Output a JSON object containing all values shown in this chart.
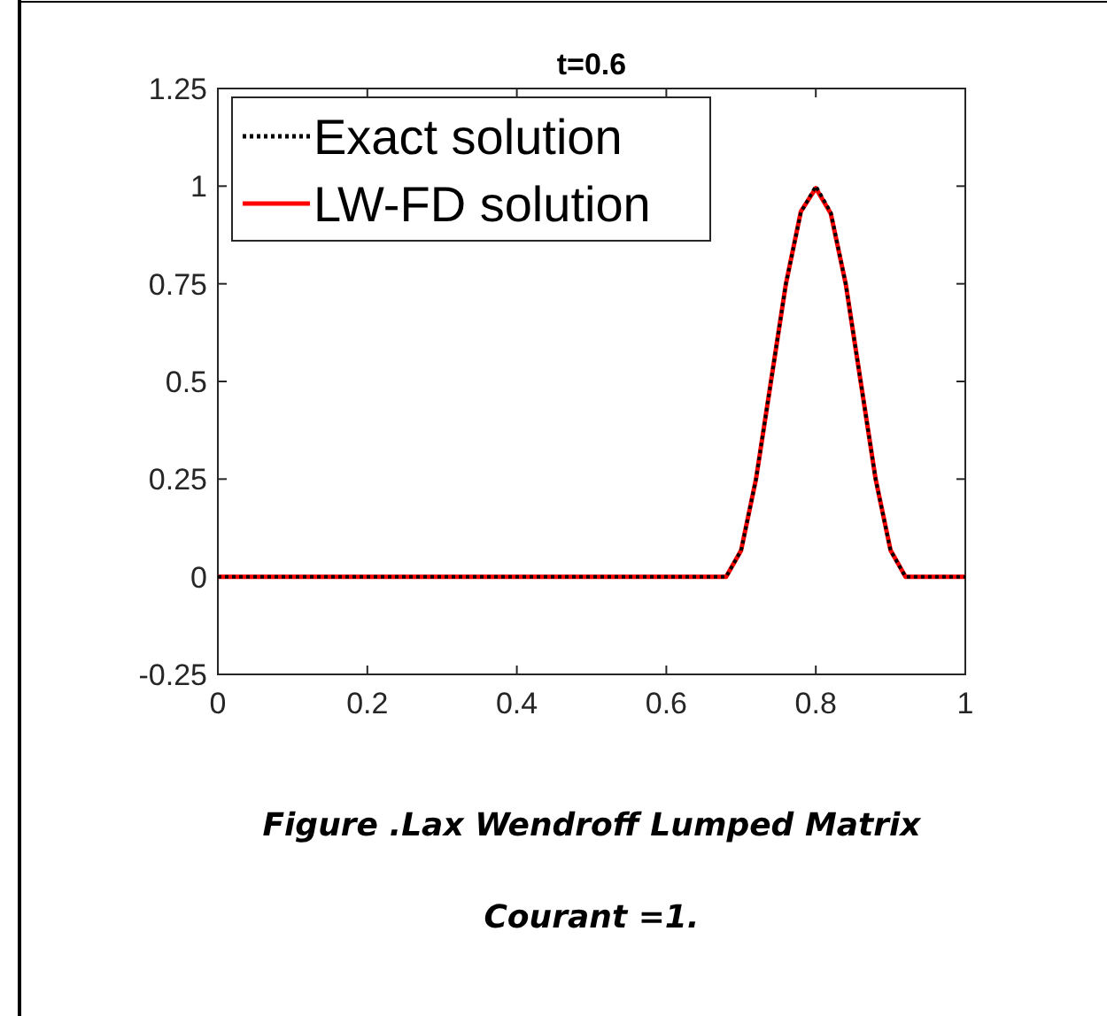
{
  "chart_data": {
    "type": "line",
    "title": "t=0.6",
    "xlim": [
      0,
      1
    ],
    "ylim": [
      -0.25,
      1.25
    ],
    "xticks": [
      0,
      0.2,
      0.4,
      0.6,
      0.8,
      1
    ],
    "yticks": [
      -0.25,
      0,
      0.25,
      0.5,
      0.75,
      1,
      1.25
    ],
    "legend": "top left",
    "grid": false,
    "x": [
      0,
      0.68,
      0.7,
      0.72,
      0.74,
      0.76,
      0.78,
      0.8,
      0.82,
      0.84,
      0.86,
      0.88,
      0.9,
      0.92,
      1
    ],
    "series": [
      {
        "name": "Exact solution",
        "color": "#000000",
        "line_style": "dotted",
        "values": [
          0,
          0,
          0.067,
          0.25,
          0.5,
          0.75,
          0.933,
          1,
          0.933,
          0.75,
          0.5,
          0.25,
          0.067,
          0,
          0
        ]
      },
      {
        "name": "LW-FD solution",
        "color": "#ff0000",
        "line_style": "solid",
        "values": [
          0,
          0,
          0.067,
          0.25,
          0.5,
          0.75,
          0.935,
          0.995,
          0.93,
          0.75,
          0.5,
          0.25,
          0.068,
          0,
          0
        ]
      }
    ],
    "annotations": [
      "Figure .Lax Wendroff Lumped Matrix",
      "Courant =1."
    ]
  }
}
